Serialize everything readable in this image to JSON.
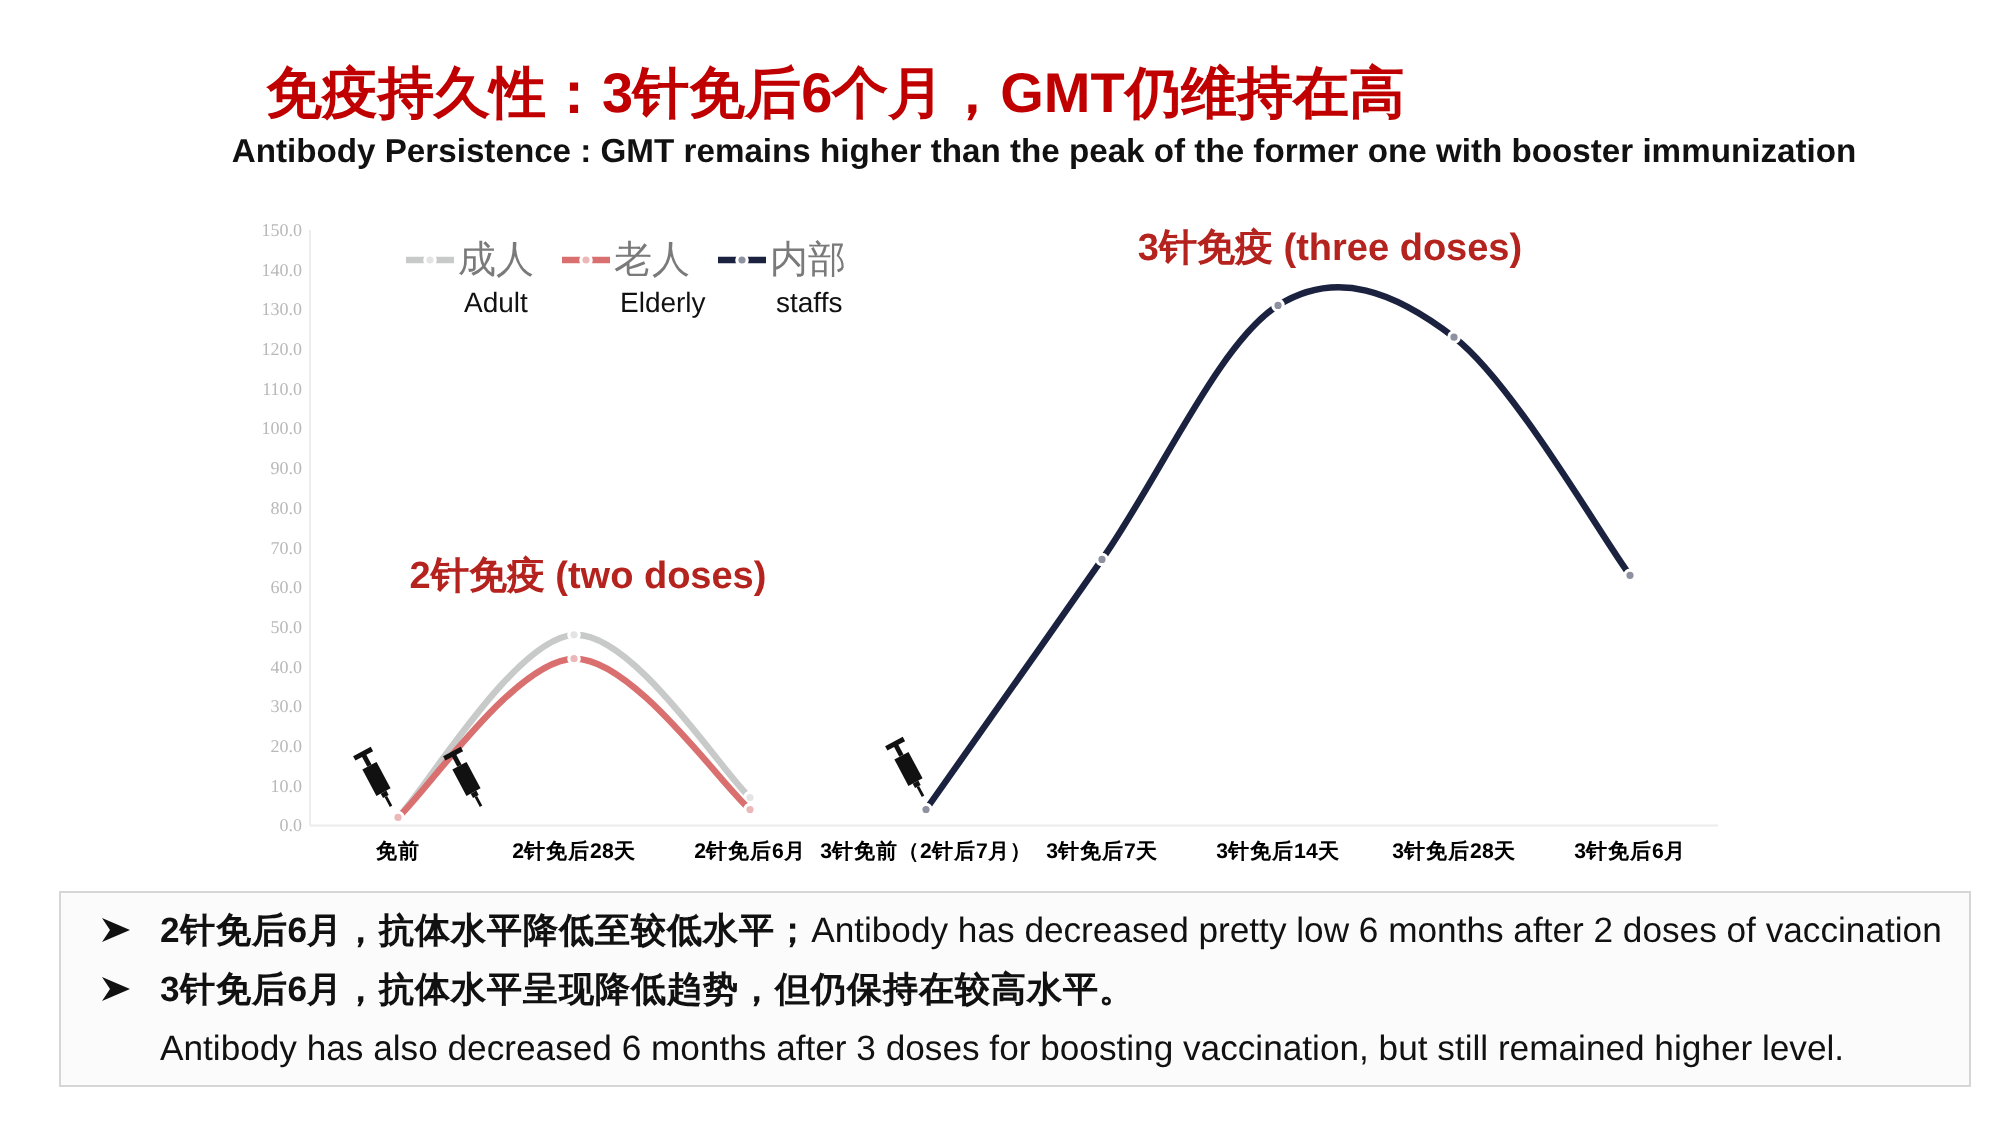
{
  "chart_data": {
    "type": "line",
    "title": "免疫持久性：3针免后6个月，GMT仍维持在高",
    "subtitle": "Antibody Persistence : GMT remains higher than the peak of the former one with booster immunization",
    "categories": [
      "免前",
      "2针免后28天",
      "2针免后6月",
      "3针免前（2针后7月）",
      "3针免后7天",
      "3针免后14天",
      "3针免后28天",
      "3针免后6月"
    ],
    "series": [
      {
        "name": "成人\nAdult",
        "color": "#c8c9c9",
        "values": [
          2,
          48,
          7,
          null,
          null,
          null,
          null,
          null
        ]
      },
      {
        "name": "老人\nElderly",
        "color": "#d9706f",
        "values": [
          2,
          42,
          4,
          null,
          null,
          null,
          null,
          null
        ]
      },
      {
        "name": "内部\nstaffs",
        "color": "#1b2240",
        "values": [
          null,
          null,
          null,
          4,
          67,
          131,
          123,
          63
        ]
      }
    ],
    "ylim": [
      0,
      150
    ],
    "yticks": [
      {
        "value": 0,
        "label": "0.0"
      },
      {
        "value": 10,
        "label": "10.0"
      },
      {
        "value": 20,
        "label": "20.0"
      },
      {
        "value": 30,
        "label": "30.0"
      },
      {
        "value": 40,
        "label": "40.0"
      },
      {
        "value": 50,
        "label": "50.0"
      },
      {
        "value": 60,
        "label": "60.0"
      },
      {
        "value": 70,
        "label": "70.0"
      },
      {
        "value": 80,
        "label": "80.0"
      },
      {
        "value": 90,
        "label": "90.0"
      },
      {
        "value": 100,
        "label": "100.0"
      },
      {
        "value": 110,
        "label": "110.0"
      },
      {
        "value": 120,
        "label": "120.0"
      },
      {
        "value": 130,
        "label": "130.0"
      },
      {
        "value": 140,
        "label": "140.0"
      },
      {
        "value": 150,
        "label": "150.0"
      }
    ],
    "legend": "top left",
    "marker": "circle",
    "annotations": [
      "2针免疫 (two doses)",
      "3针免疫 (three doses)",
      "**2针免后6月，抗体水平降低至较低水平；**Antibody has decreased pretty low 6 months after 2 doses of vaccination",
      "**3针免后6月，抗体水平呈现降低趋势，但仍保持在较高水平。**\nAntibody has also decreased 6 months after 3 doses for boosting vaccination, but still remained higher level."
    ]
  }
}
